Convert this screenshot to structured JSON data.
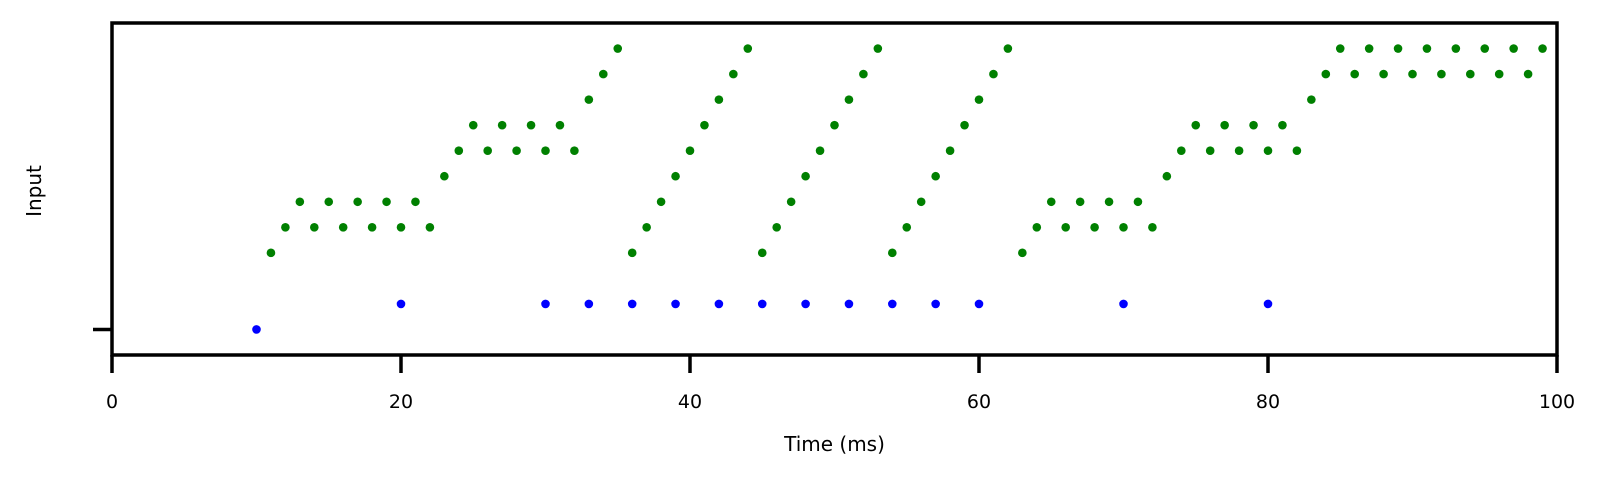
{
  "chart_data": {
    "type": "scatter",
    "title": "",
    "xlabel": "Time (ms)",
    "ylabel": "Input",
    "xlim": [
      0,
      100
    ],
    "ylim": [
      -1,
      12
    ],
    "x_ticks": [
      0,
      20,
      40,
      60,
      80,
      100
    ],
    "y_ticks": [
      0
    ],
    "grid": false,
    "legend": "none",
    "series": [
      {
        "color": "#0000ff",
        "points": [
          [
            10,
            0
          ],
          [
            20,
            1
          ],
          [
            30,
            1
          ],
          [
            33,
            1
          ],
          [
            36,
            1
          ],
          [
            39,
            1
          ],
          [
            42,
            1
          ],
          [
            45,
            1
          ],
          [
            48,
            1
          ],
          [
            51,
            1
          ],
          [
            54,
            1
          ],
          [
            57,
            1
          ],
          [
            60,
            1
          ],
          [
            70,
            1
          ],
          [
            80,
            1
          ]
        ]
      },
      {
        "color": "#008000",
        "points": [
          [
            11,
            3
          ],
          [
            12,
            4
          ],
          [
            13,
            5
          ],
          [
            14,
            4
          ],
          [
            15,
            5
          ],
          [
            16,
            4
          ],
          [
            17,
            5
          ],
          [
            18,
            4
          ],
          [
            19,
            5
          ],
          [
            20,
            4
          ],
          [
            21,
            5
          ],
          [
            22,
            4
          ],
          [
            23,
            6
          ],
          [
            24,
            7
          ],
          [
            25,
            8
          ],
          [
            26,
            7
          ],
          [
            27,
            8
          ],
          [
            28,
            7
          ],
          [
            29,
            8
          ],
          [
            30,
            7
          ],
          [
            31,
            8
          ],
          [
            32,
            7
          ],
          [
            33,
            9
          ],
          [
            34,
            10
          ],
          [
            35,
            11
          ],
          [
            36,
            3
          ],
          [
            37,
            4
          ],
          [
            38,
            5
          ],
          [
            39,
            6
          ],
          [
            40,
            7
          ],
          [
            41,
            8
          ],
          [
            42,
            9
          ],
          [
            43,
            10
          ],
          [
            44,
            11
          ],
          [
            45,
            3
          ],
          [
            46,
            4
          ],
          [
            47,
            5
          ],
          [
            48,
            6
          ],
          [
            49,
            7
          ],
          [
            50,
            8
          ],
          [
            51,
            9
          ],
          [
            52,
            10
          ],
          [
            53,
            11
          ],
          [
            54,
            3
          ],
          [
            55,
            4
          ],
          [
            56,
            5
          ],
          [
            57,
            6
          ],
          [
            58,
            7
          ],
          [
            59,
            8
          ],
          [
            60,
            9
          ],
          [
            61,
            10
          ],
          [
            62,
            11
          ],
          [
            63,
            3
          ],
          [
            64,
            4
          ],
          [
            65,
            5
          ],
          [
            66,
            4
          ],
          [
            67,
            5
          ],
          [
            68,
            4
          ],
          [
            69,
            5
          ],
          [
            70,
            4
          ],
          [
            71,
            5
          ],
          [
            72,
            4
          ],
          [
            73,
            6
          ],
          [
            74,
            7
          ],
          [
            75,
            8
          ],
          [
            76,
            7
          ],
          [
            77,
            8
          ],
          [
            78,
            7
          ],
          [
            79,
            8
          ],
          [
            80,
            7
          ],
          [
            81,
            8
          ],
          [
            82,
            7
          ],
          [
            83,
            9
          ],
          [
            84,
            10
          ],
          [
            85,
            11
          ],
          [
            86,
            10
          ],
          [
            87,
            11
          ],
          [
            88,
            10
          ],
          [
            89,
            11
          ],
          [
            90,
            10
          ],
          [
            91,
            11
          ],
          [
            92,
            10
          ],
          [
            93,
            11
          ],
          [
            94,
            10
          ],
          [
            95,
            11
          ],
          [
            96,
            10
          ],
          [
            97,
            11
          ],
          [
            98,
            10
          ],
          [
            99,
            11
          ]
        ]
      }
    ]
  }
}
